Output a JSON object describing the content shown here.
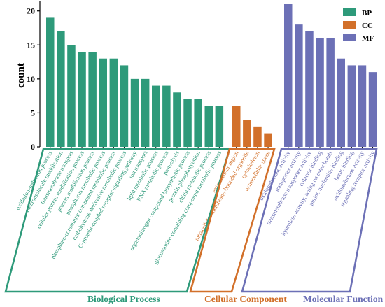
{
  "chart_data": {
    "type": "bar",
    "ylabel": "count",
    "ylim": [
      0,
      21
    ],
    "yticks": [
      0,
      5,
      10,
      15,
      20
    ],
    "legend": {
      "placement": "top-right",
      "entries": [
        {
          "key": "BP",
          "label": "BP",
          "color": "#2e9a7a"
        },
        {
          "key": "CC",
          "label": "CC",
          "color": "#d2702a"
        },
        {
          "key": "MF",
          "label": "MF",
          "color": "#6c70b6"
        }
      ]
    },
    "groups": [
      {
        "key": "BP",
        "label": "Biological Process",
        "color": "#2e9a7a"
      },
      {
        "key": "CC",
        "label": "Cellular Component",
        "color": "#d2702a"
      },
      {
        "key": "MF",
        "label": "Molecular Function",
        "color": "#6c70b6"
      }
    ],
    "series": [
      {
        "key": "BP",
        "categories": [
          "oxidation-reduction process",
          "macromolecule modification",
          "transmembrane transport",
          "cellular protein modification process",
          "protein modification process",
          "phosphorus metabolic process",
          "phosphate-containing compound metabolic process",
          "carbohydrate derivative metabolic process",
          "G-protein-coupled receptor signaling pathway",
          "ion transport",
          "lipid metabolic process",
          "RNA metabolic process",
          "proteolysis",
          "organonitrogen compound biosynthetic process",
          "protein phosphorylation",
          "chitin metabolic process",
          "glucosamine-containing compound metabolic process"
        ],
        "values": [
          19,
          17,
          15,
          14,
          14,
          13,
          13,
          12,
          10,
          10,
          9,
          9,
          8,
          7,
          7,
          6,
          6
        ]
      },
      {
        "key": "CC",
        "categories": [
          "extracellular region",
          "intracellular membrane-bounded organelle",
          "cytoskeleton",
          "extracellular space"
        ],
        "values": [
          6,
          4,
          3,
          2
        ]
      },
      {
        "key": "MF",
        "categories": [
          "oxidoreductase activity",
          "transporter activity",
          "transmembrane transporter activity",
          "cofactor binding",
          "hydrolase activity, acting on ester bonds",
          "purine nucleotide binding",
          "heme binding",
          "oxidoreductase activity",
          "signaling receptor activity"
        ],
        "values": [
          21,
          18,
          17,
          16,
          16,
          13,
          12,
          12,
          11
        ]
      }
    ]
  }
}
